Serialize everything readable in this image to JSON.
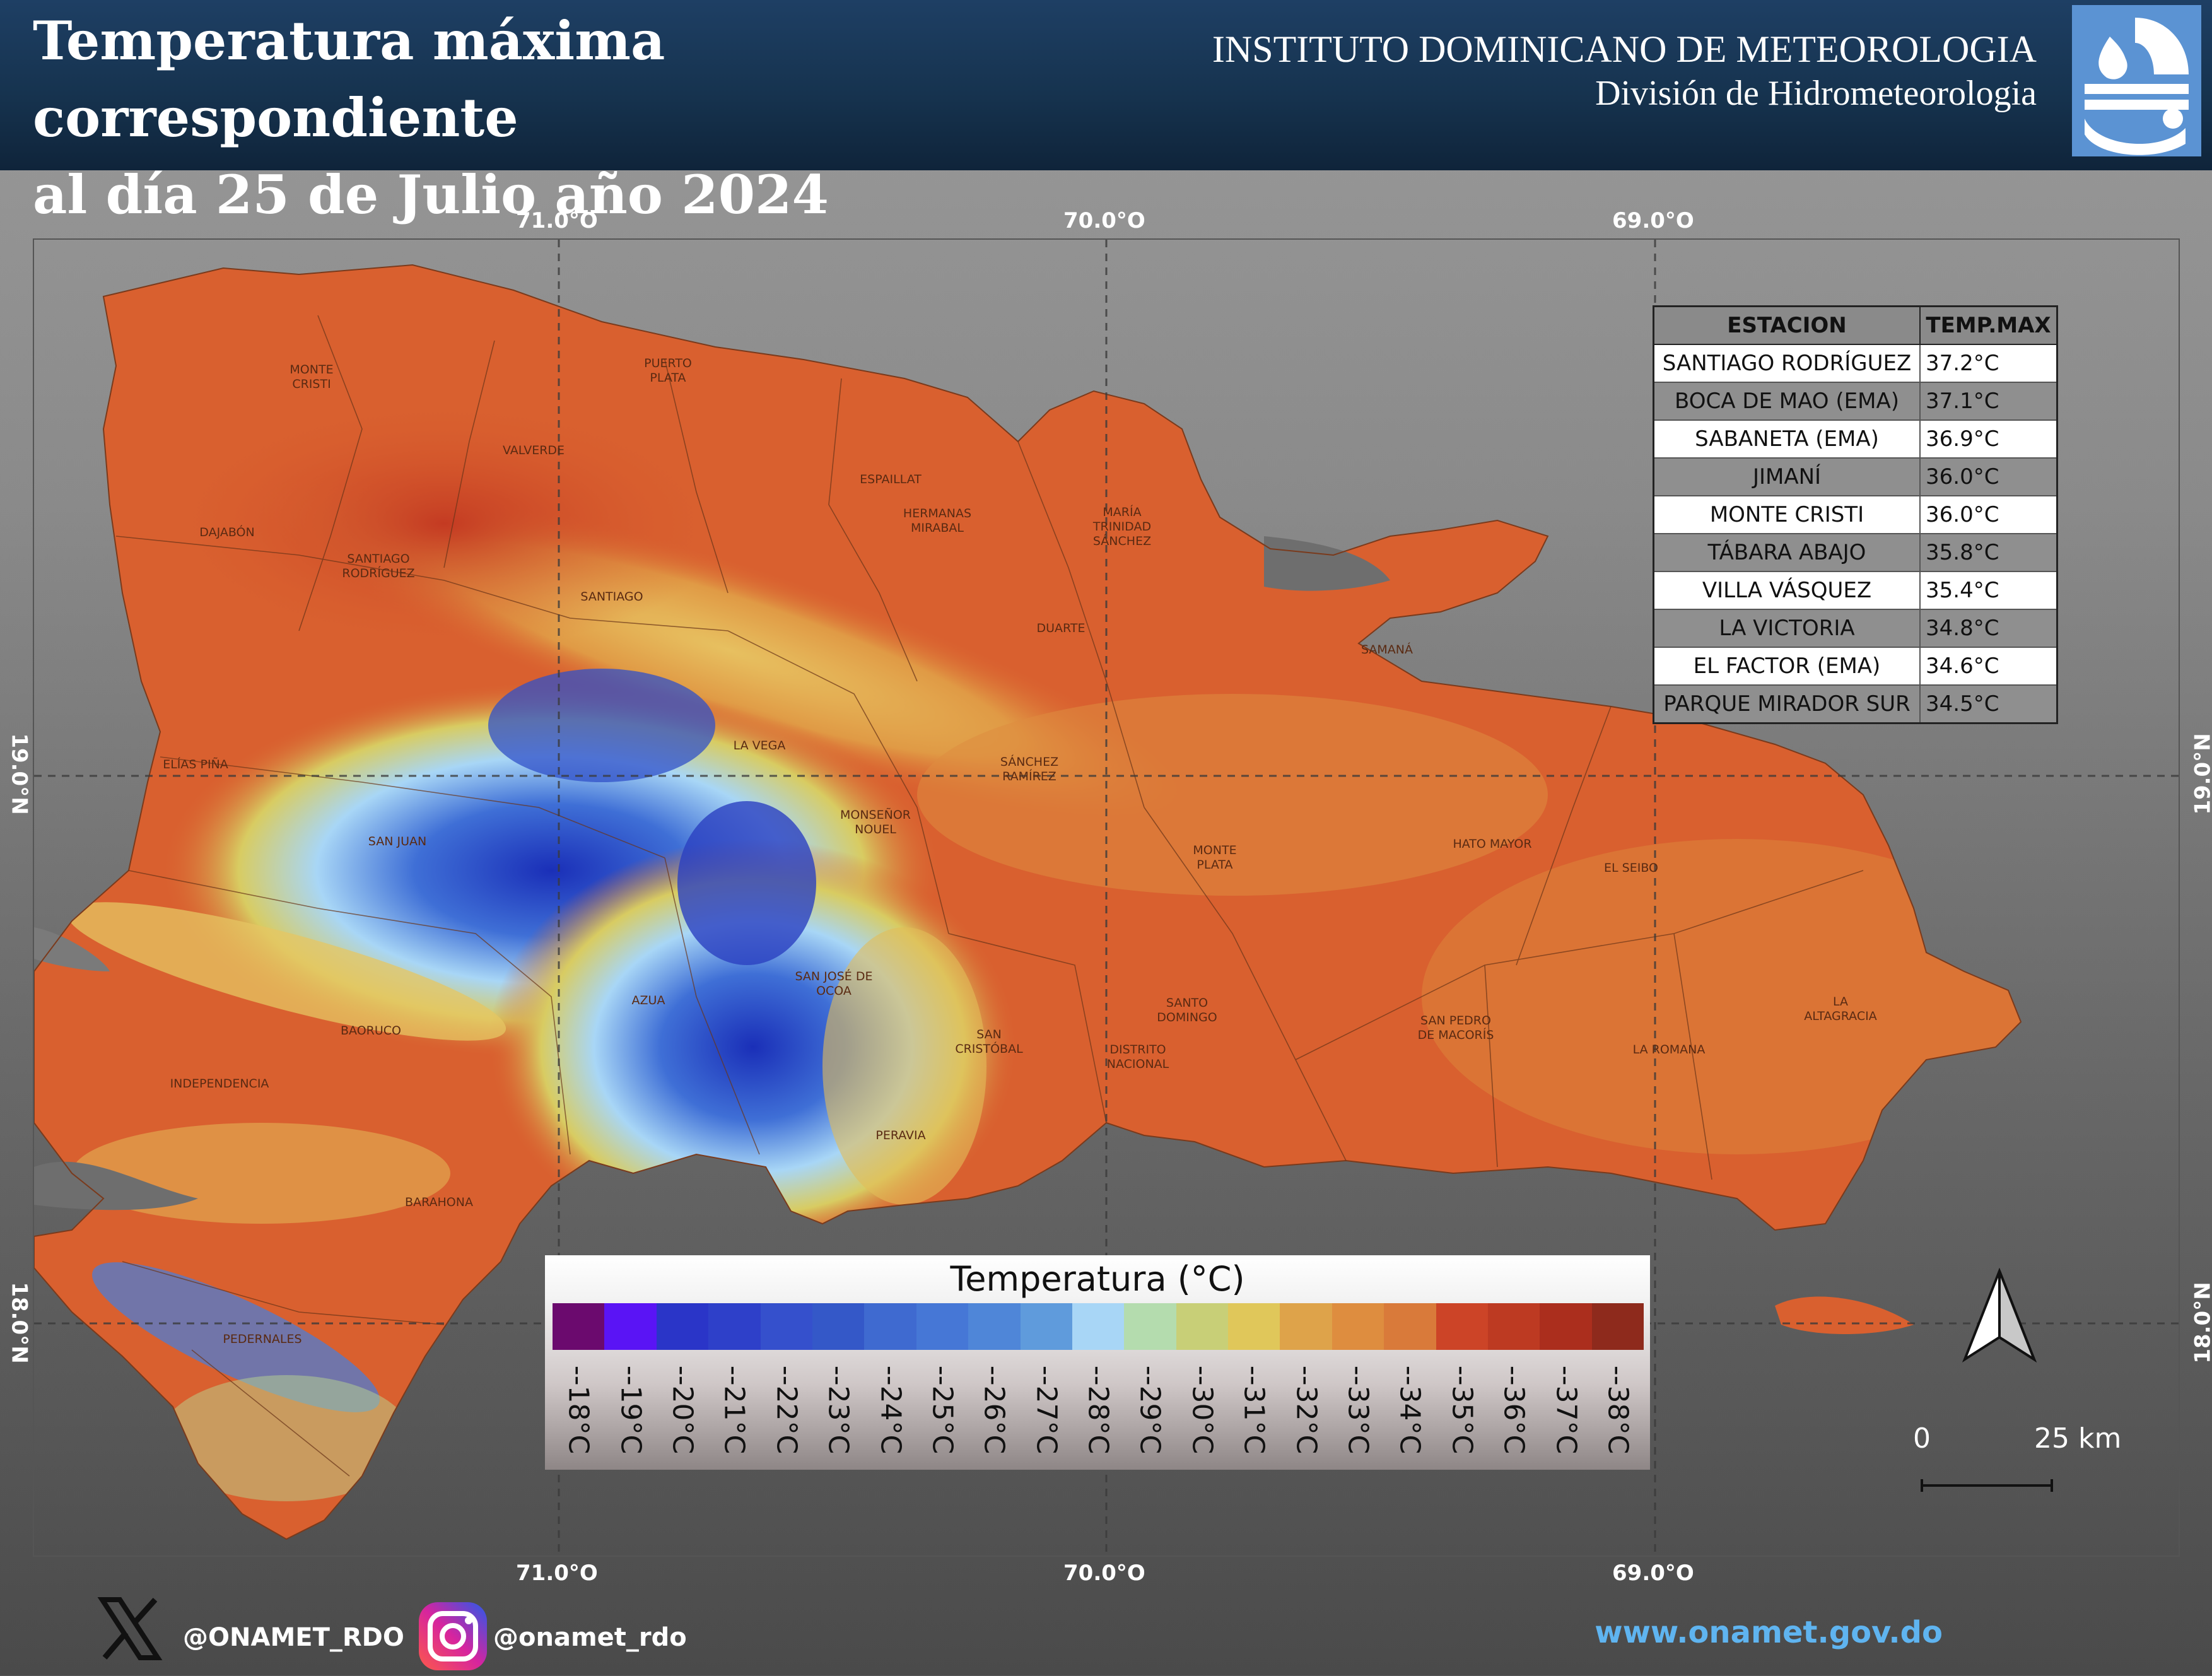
{
  "header": {
    "title_line1": "Temperatura máxima correspondiente",
    "title_line2": "al día 25 de Julio año 2024",
    "institute": "INSTITUTO DOMINICANO DE METEOROLOGIA",
    "division": "División de Hidrometeorologia",
    "logo_icon": "onamet-logo-icon"
  },
  "map": {
    "lon_labels": [
      "71.0°O",
      "70.0°O",
      "69.0°O"
    ],
    "lat_labels": [
      "19.0°N",
      "18.0°N"
    ],
    "places": [
      {
        "id": "monte-cristi",
        "lines": [
          "MONTE",
          "CRISTI"
        ]
      },
      {
        "id": "puerto-plata",
        "lines": [
          "PUERTO",
          "PLATA"
        ]
      },
      {
        "id": "valverde",
        "lines": [
          "VALVERDE"
        ]
      },
      {
        "id": "espaillat",
        "lines": [
          "ESPAILLAT"
        ]
      },
      {
        "id": "hermanas-mirabal",
        "lines": [
          "HERMANAS",
          "MIRABAL"
        ]
      },
      {
        "id": "maria-trinidad-sanchez",
        "lines": [
          "MARÍA",
          "TRINIDAD",
          "SÁNCHEZ"
        ]
      },
      {
        "id": "dajabon",
        "lines": [
          "DAJABÓN"
        ]
      },
      {
        "id": "santiago-rodriguez",
        "lines": [
          "SANTIAGO",
          "RODRÍGUEZ"
        ]
      },
      {
        "id": "santiago",
        "lines": [
          "SANTIAGO"
        ]
      },
      {
        "id": "duarte",
        "lines": [
          "DUARTE"
        ]
      },
      {
        "id": "samana",
        "lines": [
          "SAMANÁ"
        ]
      },
      {
        "id": "la-vega",
        "lines": [
          "LA VEGA"
        ]
      },
      {
        "id": "sanchez-ramirez",
        "lines": [
          "SÁNCHEZ",
          "RAMÍREZ"
        ]
      },
      {
        "id": "elias-pina",
        "lines": [
          "ELÍAS PIÑA"
        ]
      },
      {
        "id": "monsenor-nouel",
        "lines": [
          "MONSEÑOR",
          "NOUEL"
        ]
      },
      {
        "id": "san-juan",
        "lines": [
          "SAN JUAN"
        ]
      },
      {
        "id": "monte-plata",
        "lines": [
          "MONTE",
          "PLATA"
        ]
      },
      {
        "id": "hato-mayor",
        "lines": [
          "HATO MAYOR"
        ]
      },
      {
        "id": "el-seibo",
        "lines": [
          "EL SEIBO"
        ]
      },
      {
        "id": "san-jose-de-ocoa",
        "lines": [
          "SAN JOSÉ DE",
          "OCOA"
        ]
      },
      {
        "id": "azua",
        "lines": [
          "AZUA"
        ]
      },
      {
        "id": "santo-domingo",
        "lines": [
          "SANTO",
          "DOMINGO"
        ]
      },
      {
        "id": "la-altagracia",
        "lines": [
          "LA",
          "ALTAGRACIA"
        ]
      },
      {
        "id": "baoruco",
        "lines": [
          "BAORUCO"
        ]
      },
      {
        "id": "san-cristobal",
        "lines": [
          "SAN",
          "CRISTÓBAL"
        ]
      },
      {
        "id": "distrito-nacional",
        "lines": [
          "DISTRITO",
          "NACIONAL"
        ]
      },
      {
        "id": "san-pedro-de-macoris",
        "lines": [
          "SAN PEDRO",
          "DE MACORÍS"
        ]
      },
      {
        "id": "la-romana",
        "lines": [
          "LA ROMANA"
        ]
      },
      {
        "id": "independencia",
        "lines": [
          "INDEPENDENCIA"
        ]
      },
      {
        "id": "peravia",
        "lines": [
          "PERAVIA"
        ]
      },
      {
        "id": "barahona",
        "lines": [
          "BARAHONA"
        ]
      },
      {
        "id": "pedernales",
        "lines": [
          "PEDERNALES"
        ]
      }
    ]
  },
  "table": {
    "headers": [
      "ESTACION",
      "TEMP.MAX"
    ],
    "rows": [
      {
        "station": "SANTIAGO RODRÍGUEZ",
        "temp": "37.2°C"
      },
      {
        "station": "BOCA DE MAO (EMA)",
        "temp": "37.1°C"
      },
      {
        "station": "SABANETA (EMA)",
        "temp": "36.9°C"
      },
      {
        "station": "JIMANÍ",
        "temp": "36.0°C"
      },
      {
        "station": "MONTE CRISTI",
        "temp": "36.0°C"
      },
      {
        "station": "TÁBARA ABAJO",
        "temp": "35.8°C"
      },
      {
        "station": "VILLA VÁSQUEZ",
        "temp": "35.4°C"
      },
      {
        "station": "LA VICTORIA",
        "temp": "34.8°C"
      },
      {
        "station": "EL FACTOR (EMA)",
        "temp": "34.6°C"
      },
      {
        "station": "PARQUE MIRADOR SUR",
        "temp": "34.5°C"
      }
    ]
  },
  "legend": {
    "title": "Temperatura (°C)",
    "items": [
      {
        "label": "--18°C",
        "color": "#6b0a6e"
      },
      {
        "label": "--19°C",
        "color": "#5a14f5"
      },
      {
        "label": "--20°C",
        "color": "#2a35c8"
      },
      {
        "label": "--21°C",
        "color": "#2e40c9"
      },
      {
        "label": "--22°C",
        "color": "#3550cc"
      },
      {
        "label": "--23°C",
        "color": "#3458c8"
      },
      {
        "label": "--24°C",
        "color": "#3f6ad0"
      },
      {
        "label": "--25°C",
        "color": "#4677d6"
      },
      {
        "label": "--26°C",
        "color": "#4f86d8"
      },
      {
        "label": "--27°C",
        "color": "#5f9bdc"
      },
      {
        "label": "--28°C",
        "color": "#a8d6f6"
      },
      {
        "label": "--29°C",
        "color": "#b4dcae"
      },
      {
        "label": "--30°C",
        "color": "#c8cf77"
      },
      {
        "label": "--31°C",
        "color": "#e0c75a"
      },
      {
        "label": "--32°C",
        "color": "#dea34a"
      },
      {
        "label": "--33°C",
        "color": "#de8d3f"
      },
      {
        "label": "--34°C",
        "color": "#d97a3a"
      },
      {
        "label": "--35°C",
        "color": "#cc4427"
      },
      {
        "label": "--36°C",
        "color": "#bd3a22"
      },
      {
        "label": "--37°C",
        "color": "#ab2e1d"
      },
      {
        "label": "--38°C",
        "color": "#8e2a1c"
      }
    ]
  },
  "scale": {
    "start": "0",
    "end": "25 km"
  },
  "footer": {
    "x_handle": "@ONAMET_RDO",
    "ig_handle": "@onamet_rdo",
    "url": "www.onamet.gov.do"
  },
  "colors": {
    "header_bg": "#1a3a5c",
    "land_main": "#d9602f",
    "url_color": "#5fb4f0"
  }
}
